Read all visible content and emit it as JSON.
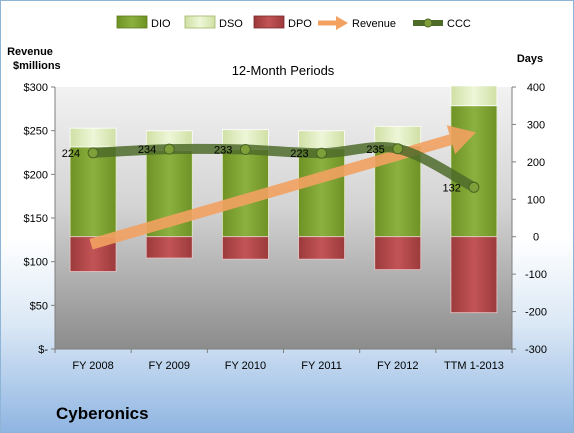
{
  "company": "Cyberonics",
  "chart_data": {
    "type": "bar",
    "title": "12-Month Periods",
    "ylabel_left": "Revenue $millions",
    "ylabel_right": "Days",
    "categories": [
      "FY 2008",
      "FY 2009",
      "FY 2010",
      "FY 2011",
      "FY 2012",
      "TTM 1-2013"
    ],
    "left_axis": {
      "ylim": [
        0,
        300
      ],
      "ticks": [
        0,
        50,
        100,
        150,
        200,
        250,
        300
      ],
      "tick_labels": [
        "$-",
        "$50",
        "$100",
        "$150",
        "$200",
        "$250",
        "$300"
      ]
    },
    "right_axis": {
      "ylim": [
        -300,
        400
      ],
      "ticks": [
        -300,
        -200,
        -100,
        0,
        100,
        200,
        300,
        400
      ]
    },
    "series": [
      {
        "name": "DIO",
        "type": "stacked-bar",
        "axis": "right",
        "color": "#7a9e2e",
        "values": [
          240,
          230,
          233,
          235,
          243,
          350
        ]
      },
      {
        "name": "DSO",
        "type": "stacked-bar",
        "axis": "right",
        "color": "#dcebb5",
        "values": [
          50,
          53,
          53,
          48,
          52,
          53
        ]
      },
      {
        "name": "DPO",
        "type": "stacked-bar-negative",
        "axis": "right",
        "color": "#b3484a",
        "values": [
          -93,
          -57,
          -60,
          -60,
          -88,
          -203
        ]
      },
      {
        "name": "Revenue",
        "type": "arrow-line",
        "axis": "left",
        "color": "#f2a160",
        "values": [
          120,
          145,
          166,
          180,
          208,
          248
        ]
      },
      {
        "name": "CCC",
        "type": "line",
        "axis": "right",
        "color": "#4f6b2a",
        "values": [
          224,
          234,
          233,
          223,
          235,
          132
        ],
        "data_labels": [
          "224",
          "234",
          "233",
          "223",
          "235",
          "132"
        ]
      }
    ],
    "legend": {
      "position": "top",
      "entries": [
        "DIO",
        "DSO",
        "DPO",
        "Revenue",
        "CCC"
      ]
    },
    "grid": false
  }
}
